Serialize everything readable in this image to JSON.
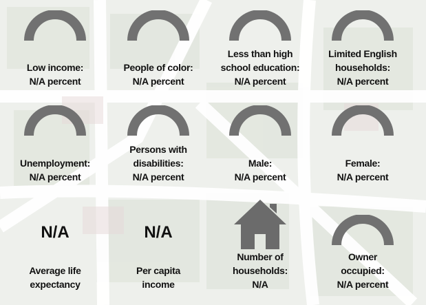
{
  "cards": [
    {
      "icon": "gauge",
      "lines": [
        "Low income:",
        "N/A percent"
      ]
    },
    {
      "icon": "gauge",
      "lines": [
        "People of color:",
        "N/A percent"
      ]
    },
    {
      "icon": "gauge",
      "lines": [
        "Less than high",
        "school education:",
        "N/A percent"
      ]
    },
    {
      "icon": "gauge",
      "lines": [
        "Limited English",
        "households:",
        "N/A percent"
      ]
    },
    {
      "icon": "gauge",
      "lines": [
        "Unemployment:",
        "N/A percent"
      ]
    },
    {
      "icon": "gauge",
      "lines": [
        "Persons with",
        "disabilities:",
        "N/A percent"
      ]
    },
    {
      "icon": "gauge",
      "lines": [
        "Male:",
        "N/A percent"
      ]
    },
    {
      "icon": "gauge",
      "lines": [
        "Female:",
        "N/A percent"
      ]
    },
    {
      "icon": "figure",
      "figure": "N/A",
      "lines": [
        "Average life",
        "expectancy"
      ]
    },
    {
      "icon": "figure",
      "figure": "N/A",
      "lines": [
        "Per capita",
        "income"
      ]
    },
    {
      "icon": "house",
      "lines": [
        "Number of",
        "households:",
        "N/A"
      ]
    },
    {
      "icon": "gauge",
      "lines": [
        "Owner",
        "occupied:",
        "N/A percent"
      ]
    }
  ]
}
